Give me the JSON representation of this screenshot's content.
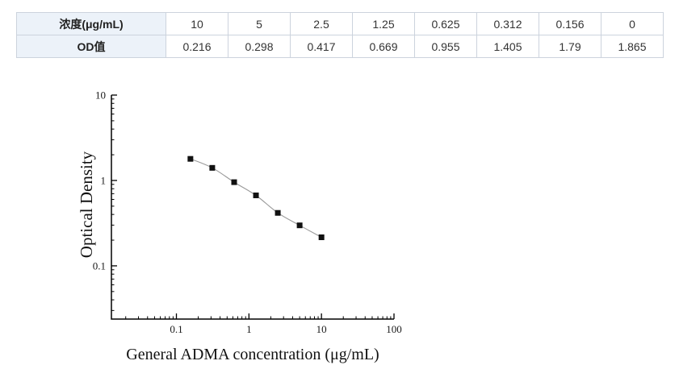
{
  "table": {
    "rows": [
      {
        "label": "浓度(μg/mL)",
        "values": [
          "10",
          "5",
          "2.5",
          "1.25",
          "0.625",
          "0.312",
          "0.156",
          "0"
        ]
      },
      {
        "label": "OD值",
        "values": [
          "0.216",
          "0.298",
          "0.417",
          "0.669",
          "0.955",
          "1.405",
          "1.79",
          "1.865"
        ]
      }
    ]
  },
  "colors": {
    "table_header_bg": "#ecf2f9",
    "table_border": "#ccd3dd",
    "axis_color": "#000000"
  },
  "chart_data": {
    "type": "line",
    "title": "",
    "xlabel": "General ADMA concentration (μg/mL)",
    "ylabel": "Optical Density",
    "x": [
      0.156,
      0.312,
      0.625,
      1.25,
      2.5,
      5,
      10
    ],
    "y": [
      1.79,
      1.405,
      0.955,
      0.669,
      0.417,
      0.298,
      0.216
    ],
    "x_scale": "log",
    "y_scale": "log",
    "xlim": [
      0.0127,
      100
    ],
    "ylim": [
      0.0238,
      10
    ],
    "x_major_ticks": [
      0.1,
      1,
      10,
      100
    ],
    "y_major_ticks": [
      0.1,
      1,
      10
    ],
    "x_tick_labels": [
      "0.1",
      "1",
      "10",
      "100"
    ],
    "y_tick_labels": [
      "0.1",
      "1",
      "10"
    ],
    "grid": false,
    "legend": false,
    "marker": "filled-square",
    "marker_color": "#111111",
    "line_color": "#999999"
  }
}
